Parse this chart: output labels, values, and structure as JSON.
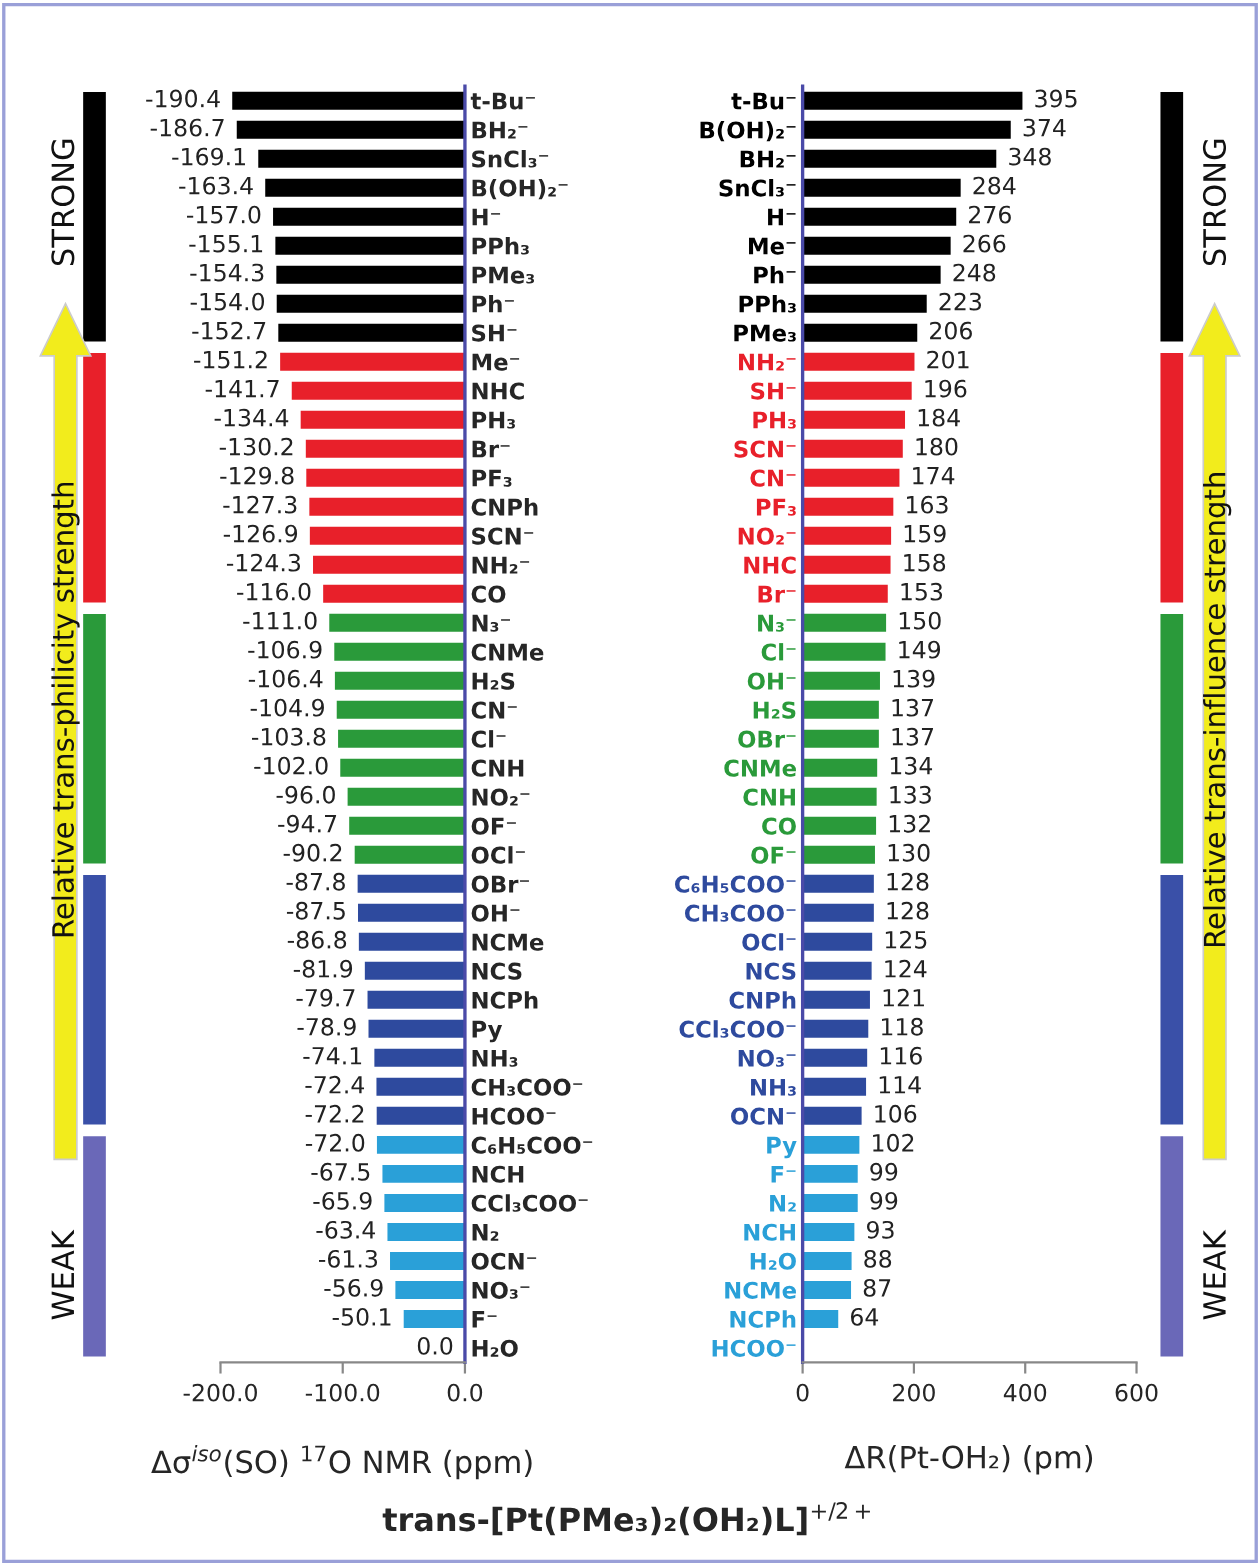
{
  "chart_data": [
    {
      "type": "bar",
      "orientation": "horizontal",
      "title": "trans-[Pt(PMe₃)₂(OH₂)L]$^{+/2+}$",
      "xlabel": "Δσ$^{iso}$(SO) $^{17}$O NMR (ppm)",
      "categories": [
        "t-Bu⁻",
        "BH₂⁻",
        "SnCl₃⁻",
        "B(OH)₂⁻",
        "H⁻",
        "PPh₃",
        "PMe₃",
        "Ph⁻",
        "SH⁻",
        "Me⁻",
        "NHC",
        "PH₃",
        "Br⁻",
        "PF₃",
        "CNPh",
        "SCN⁻",
        "NH₂⁻",
        "CO",
        "N₃⁻",
        "CNMe",
        "H₂S",
        "CN⁻",
        "Cl⁻",
        "CNH",
        "NO₂⁻",
        "OF⁻",
        "OCl⁻",
        "OBr⁻",
        "OH⁻",
        "NCMe",
        "NCS",
        "NCPh",
        "Py",
        "NH₃",
        "CH₃COO⁻",
        "HCOO⁻",
        "C₆H₅COO⁻",
        "NCH",
        "CCl₃COO⁻",
        "N₂",
        "OCN⁻",
        "NO₃⁻",
        "F⁻",
        "H₂O"
      ],
      "values": [
        -190.4,
        -186.7,
        -169.1,
        -163.4,
        -157.0,
        -155.1,
        -154.3,
        -154.0,
        -152.7,
        -151.2,
        -141.7,
        -134.4,
        -130.2,
        -129.8,
        -127.3,
        -126.9,
        -124.3,
        -116.0,
        -111.0,
        -106.9,
        -106.4,
        -104.9,
        -103.8,
        -102.0,
        -96.0,
        -94.7,
        -90.2,
        -87.8,
        -87.5,
        -86.8,
        -81.9,
        -79.7,
        -78.9,
        -74.1,
        -72.4,
        -72.2,
        -72.0,
        -67.5,
        -65.9,
        -63.4,
        -61.3,
        -56.9,
        -50.1,
        0.0
      ],
      "value_labels": [
        "-190.4",
        "-186.7",
        "-169.1",
        "-163.4",
        "-157.0",
        "-155.1",
        "-154.3",
        "-154.0",
        "-152.7",
        "-151.2",
        "-141.7",
        "-134.4",
        "-130.2",
        "-129.8",
        "-127.3",
        "-126.9",
        "-124.3",
        "-116.0",
        "-111.0",
        "-106.9",
        "-106.4",
        "-104.9",
        "-103.8",
        "-102.0",
        "-96.0",
        "-94.7",
        "-90.2",
        "-87.8",
        "-87.5",
        "-86.8",
        "-81.9",
        "-79.7",
        "-78.9",
        "-74.1",
        "-72.4",
        "-72.2",
        "-72.0",
        "-67.5",
        "-65.9",
        "-63.4",
        "-61.3",
        "-56.9",
        "-50.1",
        "0.0"
      ],
      "colors": [
        "#000000",
        "#000000",
        "#000000",
        "#000000",
        "#000000",
        "#000000",
        "#000000",
        "#000000",
        "#000000",
        "#e8202a",
        "#e8202a",
        "#e8202a",
        "#e8202a",
        "#e8202a",
        "#e8202a",
        "#e8202a",
        "#e8202a",
        "#e8202a",
        "#2a9a3a",
        "#2a9a3a",
        "#2a9a3a",
        "#2a9a3a",
        "#2a9a3a",
        "#2a9a3a",
        "#2a9a3a",
        "#2a9a3a",
        "#2a9a3a",
        "#2e4a9e",
        "#2e4a9e",
        "#2e4a9e",
        "#2e4a9e",
        "#2e4a9e",
        "#2e4a9e",
        "#2e4a9e",
        "#2e4a9e",
        "#2e4a9e",
        "#2aa0d8",
        "#2aa0d8",
        "#2aa0d8",
        "#2aa0d8",
        "#2aa0d8",
        "#2aa0d8",
        "#2aa0d8",
        "#2aa0d8"
      ],
      "xlim": [
        -200,
        0
      ],
      "xticks": [
        {
          "value": -200,
          "label": "-200.0"
        },
        {
          "value": -100,
          "label": "-100.0"
        },
        {
          "value": 0,
          "label": "0.0"
        }
      ],
      "annotations": [
        "STRONG",
        "WEAK",
        "Relative trans-philicity strength"
      ]
    },
    {
      "type": "bar",
      "orientation": "horizontal",
      "xlabel": "ΔR(Pt-OH₂) (pm)",
      "categories": [
        "t-Bu⁻",
        "B(OH)₂⁻",
        "BH₂⁻",
        "SnCl₃⁻",
        "H⁻",
        "Me⁻",
        "Ph⁻",
        "PPh₃",
        "PMe₃",
        "NH₂⁻",
        "SH⁻",
        "PH₃",
        "SCN⁻",
        "CN⁻",
        "PF₃",
        "NO₂⁻",
        "NHC",
        "Br⁻",
        "N₃⁻",
        "Cl⁻",
        "OH⁻",
        "H₂S",
        "OBr⁻",
        "CNMe",
        "CNH",
        "CO",
        "OF⁻",
        "C₆H₅COO⁻",
        "CH₃COO⁻",
        "OCl⁻",
        "NCS",
        "CNPh",
        "CCl₃COO⁻",
        "NO₃⁻",
        "NH₃",
        "OCN⁻",
        "Py",
        "F⁻",
        "N₂",
        "NCH",
        "H₂O",
        "NCMe",
        "NCPh",
        "HCOO⁻"
      ],
      "values": [
        395,
        374,
        348,
        284,
        276,
        266,
        248,
        223,
        206,
        201,
        196,
        184,
        180,
        174,
        163,
        159,
        158,
        153,
        150,
        149,
        139,
        137,
        137,
        134,
        133,
        132,
        130,
        128,
        128,
        125,
        124,
        121,
        118,
        116,
        114,
        106,
        102,
        99,
        99,
        93,
        88,
        87,
        64,
        null
      ],
      "data_labels": true,
      "colors": [
        "#000000",
        "#000000",
        "#000000",
        "#000000",
        "#000000",
        "#000000",
        "#000000",
        "#000000",
        "#000000",
        "#e8202a",
        "#e8202a",
        "#e8202a",
        "#e8202a",
        "#e8202a",
        "#e8202a",
        "#e8202a",
        "#e8202a",
        "#e8202a",
        "#2a9a3a",
        "#2a9a3a",
        "#2a9a3a",
        "#2a9a3a",
        "#2a9a3a",
        "#2a9a3a",
        "#2a9a3a",
        "#2a9a3a",
        "#2a9a3a",
        "#2e4a9e",
        "#2e4a9e",
        "#2e4a9e",
        "#2e4a9e",
        "#2e4a9e",
        "#2e4a9e",
        "#2e4a9e",
        "#2e4a9e",
        "#2e4a9e",
        "#2aa0d8",
        "#2aa0d8",
        "#2aa0d8",
        "#2aa0d8",
        "#2aa0d8",
        "#2aa0d8",
        "#2aa0d8",
        "#2aa0d8"
      ],
      "xlim": [
        0,
        600
      ],
      "xticks": [
        0,
        200,
        400,
        600
      ],
      "annotations": [
        "STRONG",
        "WEAK",
        "Relative trans-influence strength"
      ]
    }
  ]
}
